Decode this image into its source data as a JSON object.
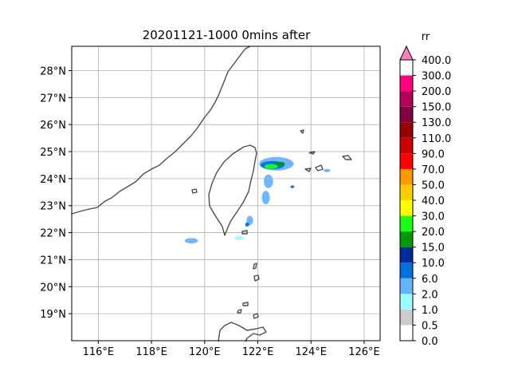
{
  "title": "20201121-1000  0mins after",
  "map": {
    "lon_range": [
      115,
      126.6
    ],
    "lat_range": [
      18,
      28.9
    ],
    "x_tick_labels": [
      {
        "lon": 116,
        "label": "116°E"
      },
      {
        "lon": 118,
        "label": "118°E"
      },
      {
        "lon": 120,
        "label": "120°E"
      },
      {
        "lon": 122,
        "label": "122°E"
      },
      {
        "lon": 124,
        "label": "124°E"
      },
      {
        "lon": 126,
        "label": "126°E"
      }
    ],
    "y_tick_labels": [
      {
        "lat": 19,
        "label": "19°N"
      },
      {
        "lat": 20,
        "label": "20°N"
      },
      {
        "lat": 21,
        "label": "21°N"
      },
      {
        "lat": 22,
        "label": "22°N"
      },
      {
        "lat": 23,
        "label": "23°N"
      },
      {
        "lat": 24,
        "label": "24°N"
      },
      {
        "lat": 25,
        "label": "25°N"
      },
      {
        "lat": 26,
        "label": "26°N"
      },
      {
        "lat": 27,
        "label": "27°N"
      },
      {
        "lat": 28,
        "label": "28°N"
      }
    ],
    "grid": true,
    "coastline_color": "#4d4d4d",
    "rain_areas": [
      {
        "center": [
          122.7,
          24.55
        ],
        "size": [
          1.3,
          0.5
        ],
        "color": "#66b3ff"
      },
      {
        "center": [
          122.55,
          24.5
        ],
        "size": [
          0.9,
          0.3
        ],
        "color": "#0070dd"
      },
      {
        "center": [
          122.5,
          24.45
        ],
        "size": [
          0.5,
          0.18
        ],
        "color": "#19ff19"
      },
      {
        "center": [
          122.85,
          24.55
        ],
        "size": [
          0.35,
          0.14
        ],
        "color": "#009900"
      },
      {
        "center": [
          122.4,
          23.9
        ],
        "size": [
          0.35,
          0.5
        ],
        "color": "#66b3ff"
      },
      {
        "center": [
          122.3,
          23.3
        ],
        "size": [
          0.3,
          0.5
        ],
        "color": "#66b3ff"
      },
      {
        "center": [
          121.7,
          22.45
        ],
        "size": [
          0.25,
          0.35
        ],
        "color": "#66b3ff"
      },
      {
        "center": [
          121.6,
          22.3
        ],
        "size": [
          0.15,
          0.15
        ],
        "color": "#0070dd"
      },
      {
        "center": [
          121.3,
          21.8
        ],
        "size": [
          0.35,
          0.15
        ],
        "color": "#99ffff"
      },
      {
        "center": [
          119.5,
          21.7
        ],
        "size": [
          0.5,
          0.2
        ],
        "color": "#66b3ff"
      },
      {
        "center": [
          123.3,
          23.7
        ],
        "size": [
          0.15,
          0.1
        ],
        "color": "#0070dd"
      },
      {
        "center": [
          124.6,
          24.3
        ],
        "size": [
          0.25,
          0.12
        ],
        "color": "#66b3ff"
      },
      {
        "center": [
          124.0,
          24.95
        ],
        "size": [
          0.2,
          0.1
        ],
        "color": "#66b3ff"
      }
    ]
  },
  "colorbar": {
    "unit_label": "rr",
    "levels": [
      "0.0",
      "0.5",
      "1.0",
      "2.0",
      "6.0",
      "10.0",
      "15.0",
      "20.0",
      "30.0",
      "40.0",
      "50.0",
      "70.0",
      "90.0",
      "110.0",
      "130.0",
      "150.0",
      "200.0",
      "300.0",
      "400.0"
    ],
    "colors": [
      "#ffffff",
      "#cccccc",
      "#99ffff",
      "#66b3ff",
      "#0070dd",
      "#002a99",
      "#009900",
      "#19ff19",
      "#ffff00",
      "#ffcc00",
      "#ff9900",
      "#ff0000",
      "#cc0000",
      "#990000",
      "#800040",
      "#b30059",
      "#ff0080"
    ],
    "extend_color": "#ff80c0"
  }
}
